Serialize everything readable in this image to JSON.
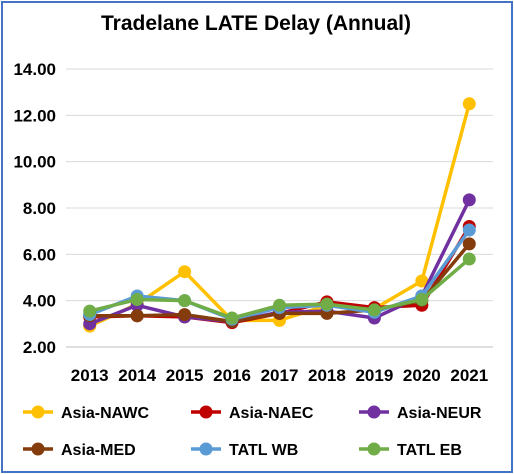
{
  "chart_data": {
    "type": "line",
    "title": "Tradelane LATE Delay (Annual)",
    "xlabel": "",
    "ylabel": "",
    "categories": [
      "2013",
      "2014",
      "2015",
      "2016",
      "2017",
      "2018",
      "2019",
      "2020",
      "2021"
    ],
    "ylim": [
      2.0,
      14.0
    ],
    "yticks": [
      "2.00",
      "4.00",
      "6.00",
      "8.00",
      "10.00",
      "12.00",
      "14.00"
    ],
    "ytick_values": [
      2,
      4,
      6,
      8,
      10,
      12,
      14
    ],
    "grid": "horizontal",
    "legend_position": "bottom",
    "series": [
      {
        "name": "Asia-NAWC",
        "color": "#ffc000",
        "values": [
          2.9,
          3.85,
          5.25,
          3.15,
          3.15,
          3.8,
          3.65,
          4.85,
          12.5
        ]
      },
      {
        "name": "Asia-NAEC",
        "color": "#c00000",
        "values": [
          3.3,
          3.35,
          3.3,
          3.05,
          3.45,
          3.95,
          3.7,
          3.8,
          7.2
        ]
      },
      {
        "name": "Asia-NEUR",
        "color": "#7030a0",
        "values": [
          3.0,
          3.8,
          3.3,
          3.1,
          3.5,
          3.55,
          3.25,
          4.2,
          8.35
        ]
      },
      {
        "name": "Asia-MED",
        "color": "#843c0c",
        "values": [
          3.35,
          3.35,
          3.4,
          3.1,
          3.45,
          3.45,
          3.6,
          4.0,
          6.45
        ]
      },
      {
        "name": "TATL WB",
        "color": "#5b9bd5",
        "values": [
          3.4,
          4.2,
          4.0,
          3.2,
          3.7,
          3.8,
          3.5,
          4.2,
          7.05
        ]
      },
      {
        "name": "TATL EB",
        "color": "#70ad47",
        "values": [
          3.55,
          4.05,
          4.0,
          3.25,
          3.8,
          3.85,
          3.6,
          4.05,
          5.8
        ]
      }
    ]
  }
}
